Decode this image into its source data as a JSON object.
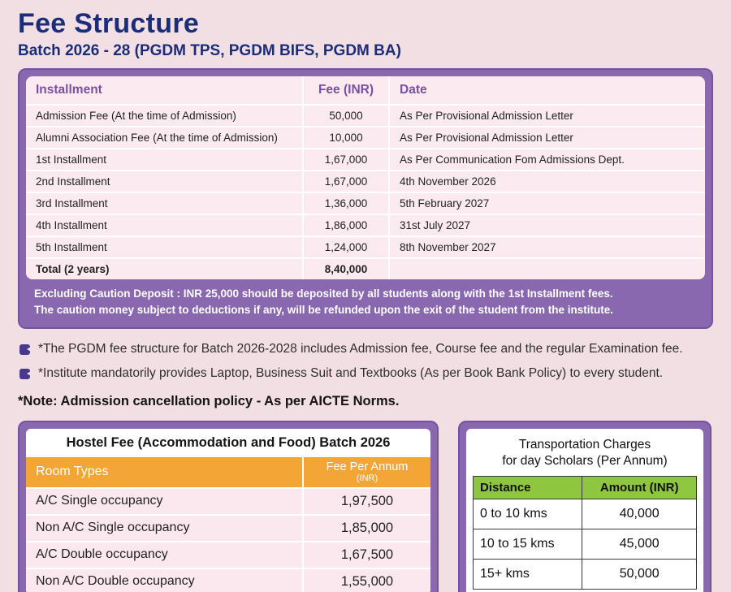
{
  "page": {
    "title": "Fee Structure",
    "subtitle": "Batch 2026 - 28 (PGDM TPS, PGDM BIFS, PGDM BA)"
  },
  "fee_table": {
    "headers": {
      "installment": "Installment",
      "fee": "Fee (INR)",
      "date": "Date"
    },
    "rows": [
      {
        "installment": "Admission Fee (At the time of Admission)",
        "fee": "50,000",
        "date": "As Per Provisional Admission Letter"
      },
      {
        "installment": "Alumni Association Fee (At the time of Admission)",
        "fee": "10,000",
        "date": "As Per Provisional Admission Letter"
      },
      {
        "installment": "1st Installment",
        "fee": "1,67,000",
        "date": "As Per Communication Fom Admissions Dept."
      },
      {
        "installment": "2nd Installment",
        "fee": "1,67,000",
        "date": "4th November 2026"
      },
      {
        "installment": "3rd Installment",
        "fee": "1,36,000",
        "date": "5th February 2027"
      },
      {
        "installment": "4th Installment",
        "fee": "1,86,000",
        "date": "31st July 2027"
      },
      {
        "installment": "5th Installment",
        "fee": "1,24,000",
        "date": "8th November 2027"
      }
    ],
    "total": {
      "installment": "Total (2 years)",
      "fee": "8,40,000",
      "date": ""
    },
    "caution_line1": "Excluding Caution Deposit : INR 25,000 should be deposited by all students along with the 1st Installment fees.",
    "caution_line2": "The caution money subject to deductions if any, will be refunded upon the exit of the student from the institute."
  },
  "notes": {
    "bullet1": "*The PGDM fee structure for Batch 2026-2028 includes Admission fee, Course fee and the regular Examination fee.",
    "bullet2": "*Institute mandatorily provides Laptop, Business Suit and Textbooks (As per Book Bank Policy) to every student.",
    "cancellation": "*Note: Admission cancellation policy - As per AICTE Norms."
  },
  "hostel_table": {
    "title": "Hostel Fee (Accommodation and Food) Batch 2026",
    "header_room": "Room Types",
    "header_fee": "Fee Per Annum",
    "header_fee_sub": "(INR)",
    "rows": [
      {
        "room": "A/C Single occupancy",
        "fee": "1,97,500"
      },
      {
        "room": "Non A/C Single occupancy",
        "fee": "1,85,000"
      },
      {
        "room": "A/C Double occupancy",
        "fee": "1,67,500"
      },
      {
        "room": "Non A/C Double occupancy",
        "fee": "1,55,000"
      }
    ]
  },
  "transport_table": {
    "title_line1": "Transportation Charges",
    "title_line2": "for day Scholars (Per Annum)",
    "header_distance": "Distance",
    "header_amount": "Amount (INR)",
    "rows": [
      {
        "distance": "0 to 10 kms",
        "amount": "40,000"
      },
      {
        "distance": "10 to 15 kms",
        "amount": "45,000"
      },
      {
        "distance": "15+ kms",
        "amount": "50,000"
      }
    ]
  },
  "colors": {
    "background": "#f2dfe4",
    "navy": "#1b2d78",
    "purple": "#8a68b0",
    "row_pink": "#fbebf1",
    "orange": "#f3a636",
    "green": "#8fc640"
  }
}
